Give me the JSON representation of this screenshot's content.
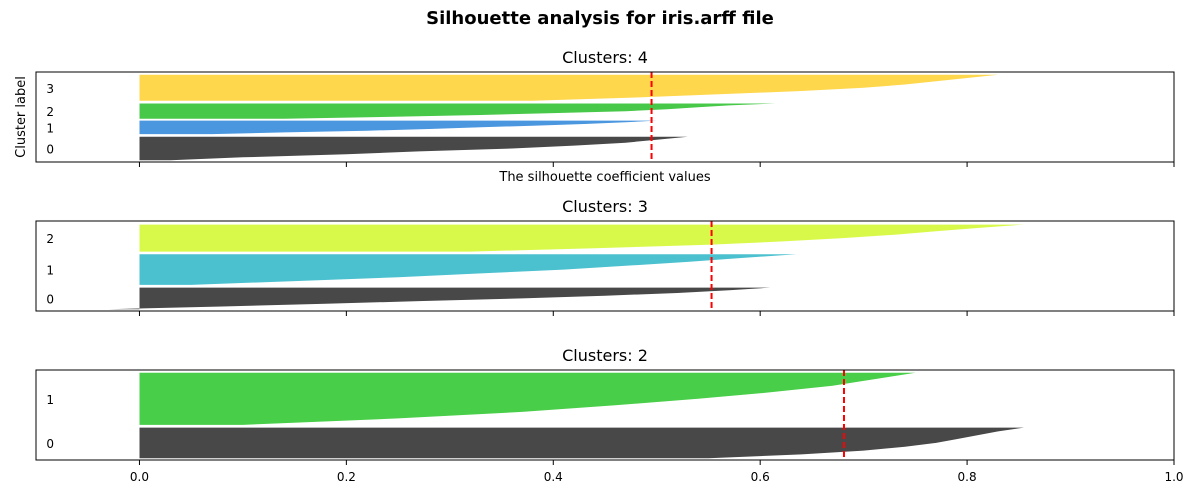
{
  "figure": {
    "title": "Silhouette analysis for iris.arff file"
  },
  "chart_data": [
    {
      "type": "area",
      "title": "Clusters: 4",
      "xlabel": "The silhouette coefficient values",
      "ylabel": "Cluster label",
      "xlim": [
        -0.1,
        1.0
      ],
      "show_x_tick_labels": false,
      "average_silhouette": 0.495,
      "series": [
        {
          "name": "0",
          "color": "#484848",
          "y_range": [
            2,
            28
          ],
          "profile": [
            0.53,
            0.5,
            0.47,
            0.42,
            0.36,
            0.27,
            0.2,
            0.1,
            0.03
          ]
        },
        {
          "name": "1",
          "color": "#4a96df",
          "y_range": [
            31,
            46
          ],
          "profile": [
            0.5,
            0.47,
            0.43,
            0.38,
            0.33,
            0.28,
            0.22,
            0.14,
            0.07
          ]
        },
        {
          "name": "2",
          "color": "#48c848",
          "y_range": [
            48,
            65
          ],
          "profile": [
            0.615,
            0.57,
            0.54,
            0.51,
            0.47,
            0.4,
            0.33,
            0.24,
            0.14
          ]
        },
        {
          "name": "3",
          "color": "#fed74c",
          "y_range": [
            68,
            97
          ],
          "profile": [
            0.83,
            0.8,
            0.77,
            0.74,
            0.7,
            0.64,
            0.56,
            0.48,
            0.38
          ]
        }
      ]
    },
    {
      "type": "area",
      "title": "Clusters: 3",
      "xlabel": "",
      "ylabel": "",
      "xlim": [
        -0.1,
        1.0
      ],
      "show_x_tick_labels": false,
      "average_silhouette": 0.553,
      "series": [
        {
          "name": "0",
          "color": "#484848",
          "y_range": [
            2,
            26
          ],
          "profile": [
            0.61,
            0.57,
            0.52,
            0.45,
            0.37,
            0.27,
            0.18,
            0.08,
            -0.03
          ]
        },
        {
          "name": "1",
          "color": "#4bc0cf",
          "y_range": [
            29,
            63
          ],
          "profile": [
            0.635,
            0.58,
            0.53,
            0.47,
            0.41,
            0.33,
            0.25,
            0.15,
            0.05
          ]
        },
        {
          "name": "2",
          "color": "#d9f94a",
          "y_range": [
            66,
            96
          ],
          "profile": [
            0.855,
            0.81,
            0.77,
            0.73,
            0.68,
            0.62,
            0.55,
            0.44,
            0.32
          ]
        }
      ]
    },
    {
      "type": "area",
      "title": "Clusters: 2",
      "xlabel": "",
      "ylabel": "",
      "xlim": [
        -0.1,
        1.0
      ],
      "show_x_tick_labels": true,
      "average_silhouette": 0.681,
      "series": [
        {
          "name": "0",
          "color": "#484848",
          "y_range": [
            2,
            36
          ],
          "profile": [
            0.855,
            0.83,
            0.81,
            0.79,
            0.77,
            0.74,
            0.7,
            0.64,
            0.55
          ]
        },
        {
          "name": "1",
          "color": "#48ce48",
          "y_range": [
            39,
            97
          ],
          "profile": [
            0.75,
            0.71,
            0.67,
            0.61,
            0.54,
            0.46,
            0.37,
            0.25,
            0.1
          ]
        }
      ]
    }
  ],
  "x_ticks": [
    0.0,
    0.2,
    0.4,
    0.6,
    0.8,
    1.0
  ],
  "x_tick_labels": [
    "0.0",
    "0.2",
    "0.4",
    "0.6",
    "0.8",
    "1.0"
  ]
}
